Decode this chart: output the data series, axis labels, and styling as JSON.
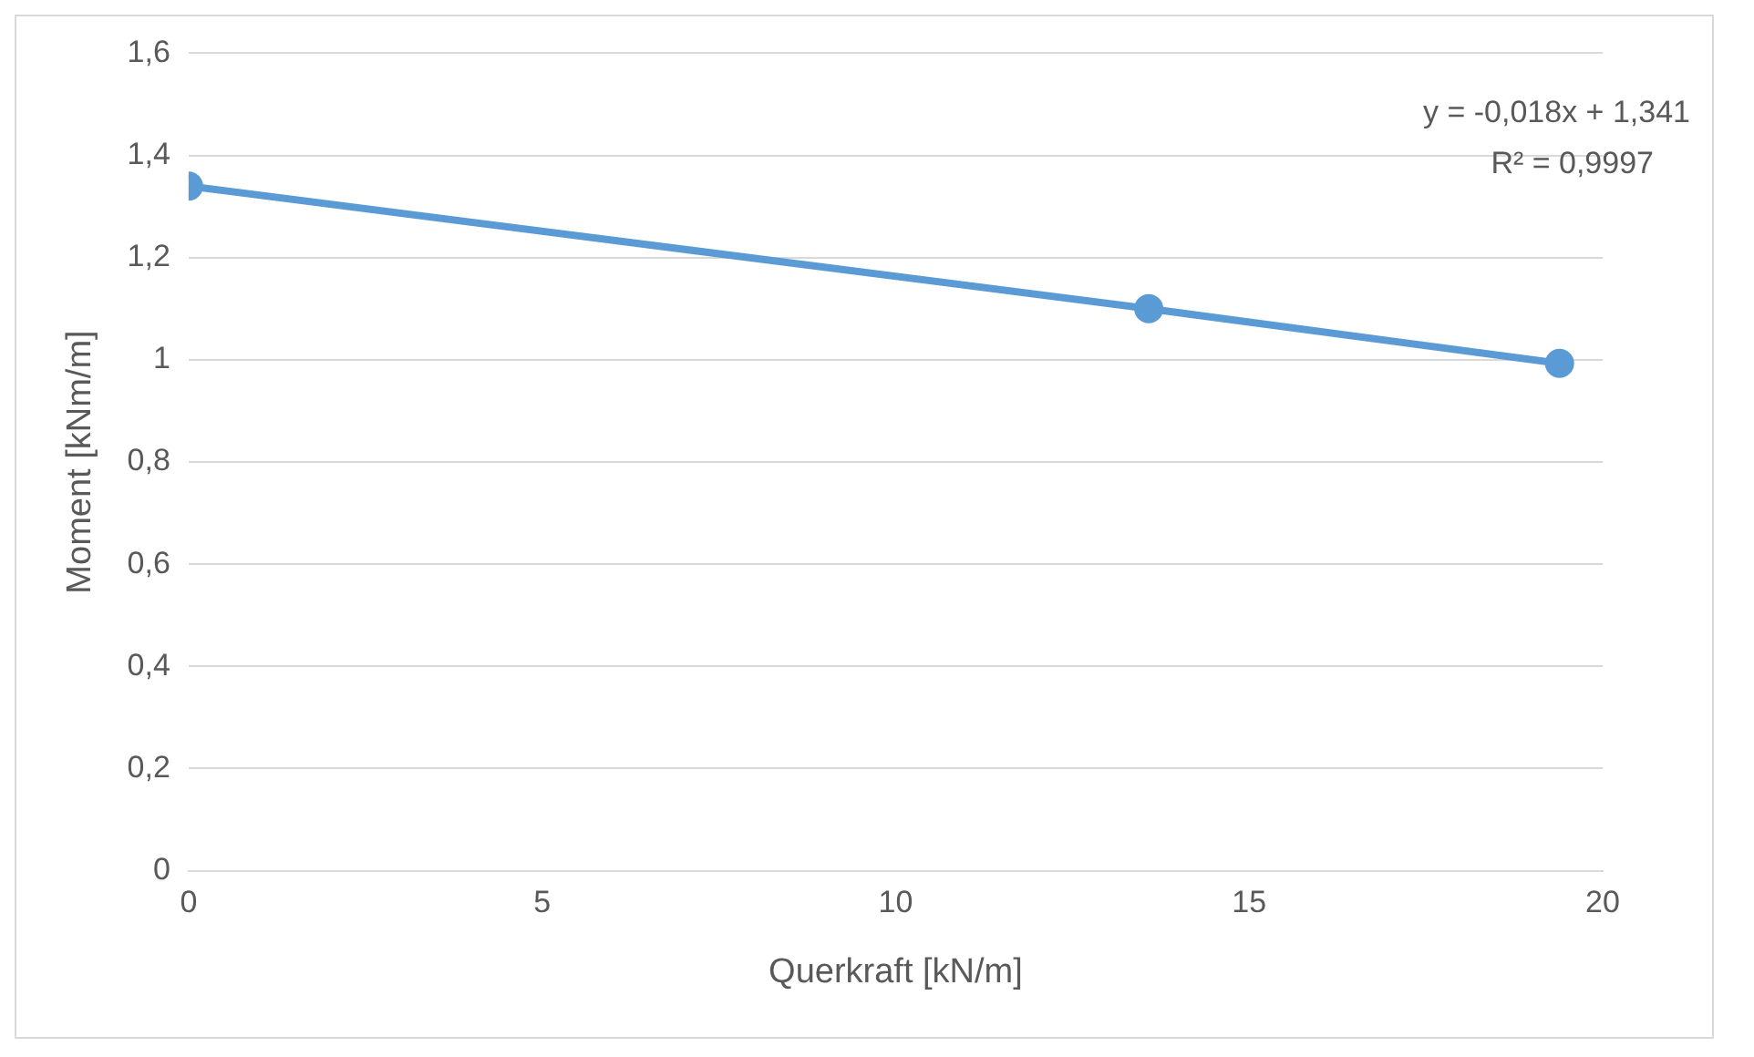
{
  "chart_data": {
    "type": "line",
    "xlabel": "Querkraft [kN/m]",
    "ylabel": "Moment [kNm/m]",
    "x": [
      0,
      13.58,
      19.39
    ],
    "series": [
      {
        "color": "#5b9bd5",
        "values": [
          1.34,
          1.1,
          0.993
        ]
      }
    ],
    "xlim": [
      0,
      20
    ],
    "xticks": [
      0,
      5,
      10,
      15,
      20
    ],
    "ylim": [
      0,
      1.6
    ],
    "yticks": [
      0,
      {
        "value": 0.2,
        "label": "0,2"
      },
      {
        "value": 0.4,
        "label": "0,4"
      },
      {
        "value": 0.6,
        "label": "0,6"
      },
      {
        "value": 0.8,
        "label": "0,8"
      },
      1,
      {
        "value": 1.2,
        "label": "1,2"
      },
      {
        "value": 1.4,
        "label": "1,4"
      },
      {
        "value": 1.6,
        "label": "1,6"
      }
    ],
    "annotations": [
      "y = -0,018x + 1,341",
      "R² = 0,9997"
    ],
    "grid": "y",
    "legend": false,
    "marker": "circle",
    "line_style": "solid"
  }
}
